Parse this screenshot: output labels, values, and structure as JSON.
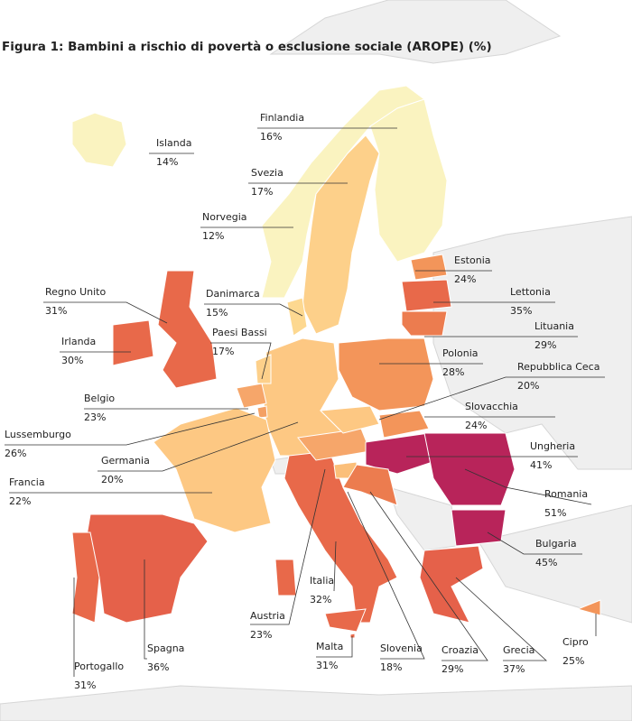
{
  "title": "Figura 1: Bambini a rischio di povertà o esclusione sociale (AROPE) (%)",
  "countries": [
    {
      "name": "Islanda",
      "value": "14%"
    },
    {
      "name": "Finlandia",
      "value": "16%"
    },
    {
      "name": "Svezia",
      "value": "17%"
    },
    {
      "name": "Norvegia",
      "value": "12%"
    },
    {
      "name": "Estonia",
      "value": "24%"
    },
    {
      "name": "Regno Unito",
      "value": "31%"
    },
    {
      "name": "Danimarca",
      "value": "15%"
    },
    {
      "name": "Lettonia",
      "value": "35%"
    },
    {
      "name": "Lituania",
      "value": "29%"
    },
    {
      "name": "Irlanda",
      "value": "30%"
    },
    {
      "name": "Paesi Bassi",
      "value": "17%"
    },
    {
      "name": "Polonia",
      "value": "28%"
    },
    {
      "name": "Repubblica Ceca",
      "value": "20%"
    },
    {
      "name": "Belgio",
      "value": "23%"
    },
    {
      "name": "Slovacchia",
      "value": "24%"
    },
    {
      "name": "Lussemburgo",
      "value": "26%"
    },
    {
      "name": "Germania",
      "value": "20%"
    },
    {
      "name": "Ungheria",
      "value": "41%"
    },
    {
      "name": "Francia",
      "value": "22%"
    },
    {
      "name": "Romania",
      "value": "51%"
    },
    {
      "name": "Bulgaria",
      "value": "45%"
    },
    {
      "name": "Italia",
      "value": "32%"
    },
    {
      "name": "Austria",
      "value": "23%"
    },
    {
      "name": "Cipro",
      "value": "25%"
    },
    {
      "name": "Malta",
      "value": "31%"
    },
    {
      "name": "Slovenia",
      "value": "18%"
    },
    {
      "name": "Croazia",
      "value": "29%"
    },
    {
      "name": "Grecia",
      "value": "37%"
    },
    {
      "name": "Spagna",
      "value": "36%"
    },
    {
      "name": "Portogallo",
      "value": "31%"
    }
  ]
}
